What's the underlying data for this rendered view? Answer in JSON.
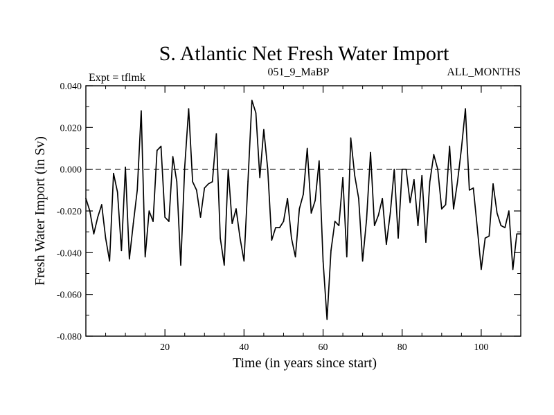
{
  "chart_data": {
    "type": "line",
    "title": "S. Atlantic Net Fresh Water Import",
    "subtitle_left": "Expt = tflmk",
    "subtitle_center": "051_9_MaBP",
    "subtitle_right": "ALL_MONTHS",
    "xlabel": "Time (in years since start)",
    "ylabel": "Fresh Water Import (in Sv)",
    "xlim": [
      0,
      110
    ],
    "ylim": [
      -0.08,
      0.04
    ],
    "x_ticks": [
      20,
      40,
      60,
      80,
      100
    ],
    "x_tick_labels": [
      "20",
      "40",
      "60",
      "80",
      "100"
    ],
    "y_ticks": [
      -0.08,
      -0.06,
      -0.04,
      -0.02,
      0.0,
      0.02,
      0.04
    ],
    "y_tick_labels": [
      "-0.080",
      "-0.060",
      "-0.040",
      "-0.020",
      "0.000",
      "0.020",
      "0.040"
    ],
    "reference_line": 0.0,
    "series": [
      {
        "name": "Net fresh water import",
        "x": [
          0,
          1,
          2,
          3,
          4,
          5,
          6,
          7,
          8,
          9,
          10,
          11,
          12,
          13,
          14,
          15,
          16,
          17,
          18,
          19,
          20,
          21,
          22,
          23,
          24,
          25,
          26,
          27,
          28,
          29,
          30,
          31,
          32,
          33,
          34,
          35,
          36,
          37,
          38,
          39,
          40,
          41,
          42,
          43,
          44,
          45,
          46,
          47,
          48,
          49,
          50,
          51,
          52,
          53,
          54,
          55,
          56,
          57,
          58,
          59,
          60,
          61,
          62,
          63,
          64,
          65,
          66,
          67,
          68,
          69,
          70,
          71,
          72,
          73,
          74,
          75,
          76,
          77,
          78,
          79,
          80,
          81,
          82,
          83,
          84,
          85,
          86,
          87,
          88,
          89,
          90,
          91,
          92,
          93,
          94,
          95,
          96,
          97,
          98,
          99,
          100,
          101,
          102,
          103,
          104,
          105,
          106,
          107,
          108,
          109,
          110
        ],
        "y": [
          -0.014,
          -0.02,
          -0.031,
          -0.023,
          -0.017,
          -0.033,
          -0.044,
          -0.002,
          -0.011,
          -0.039,
          0.001,
          -0.043,
          -0.026,
          -0.01,
          0.028,
          -0.042,
          -0.02,
          -0.025,
          0.009,
          0.011,
          -0.023,
          -0.025,
          0.006,
          -0.006,
          -0.046,
          0.001,
          0.029,
          -0.006,
          -0.01,
          -0.023,
          -0.009,
          -0.007,
          -0.006,
          0.017,
          -0.033,
          -0.046,
          0.0,
          -0.026,
          -0.019,
          -0.033,
          -0.044,
          -0.006,
          0.033,
          0.027,
          -0.004,
          0.019,
          0.0,
          -0.034,
          -0.028,
          -0.028,
          -0.025,
          -0.014,
          -0.033,
          -0.042,
          -0.019,
          -0.012,
          0.01,
          -0.021,
          -0.015,
          0.004,
          -0.044,
          -0.072,
          -0.039,
          -0.025,
          -0.027,
          -0.004,
          -0.042,
          0.015,
          -0.003,
          -0.014,
          -0.044,
          -0.024,
          0.008,
          -0.027,
          -0.022,
          -0.014,
          -0.036,
          -0.021,
          0.0,
          -0.033,
          0.0,
          0.0,
          -0.016,
          -0.005,
          -0.027,
          -0.003,
          -0.035,
          -0.006,
          0.007,
          0.0,
          -0.019,
          -0.017,
          0.011,
          -0.019,
          -0.006,
          0.01,
          0.029,
          -0.01,
          -0.009,
          -0.028,
          -0.048,
          -0.033,
          -0.032,
          -0.007,
          -0.021,
          -0.027,
          -0.028,
          -0.02,
          -0.048,
          -0.031,
          -0.031
        ]
      }
    ]
  }
}
